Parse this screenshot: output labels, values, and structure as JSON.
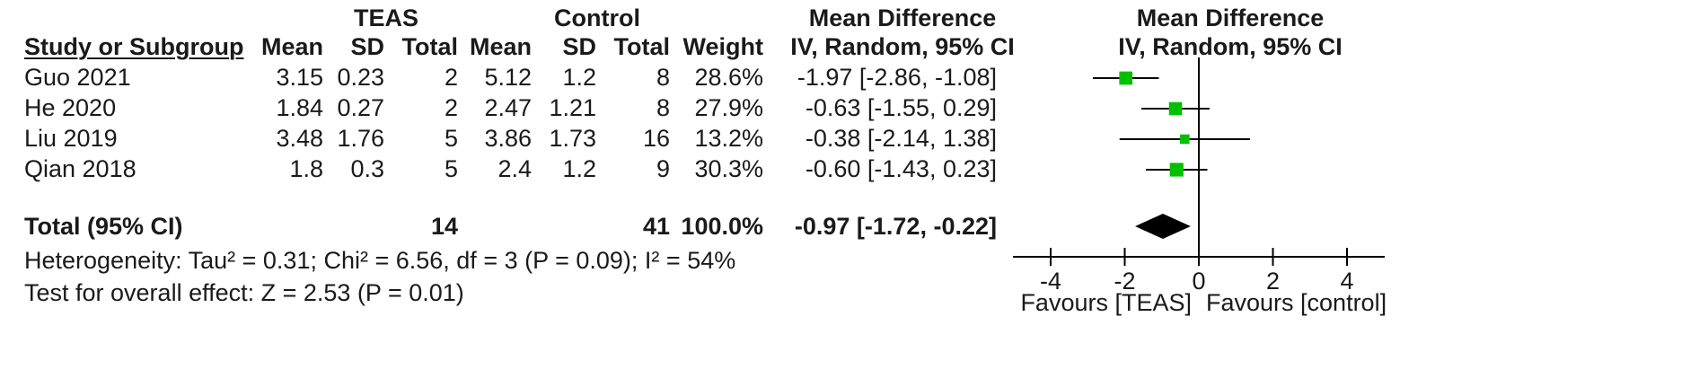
{
  "headers": {
    "group1": "TEAS",
    "group2": "Control",
    "md_left": "Mean Difference",
    "md_left_sub": "IV, Random, 95% CI",
    "md_right": "Mean Difference",
    "md_right_sub": "IV, Random, 95% CI",
    "study": "Study or Subgroup",
    "mean1": "Mean",
    "sd1": "SD",
    "total1": "Total",
    "mean2": "Mean",
    "sd2": "SD",
    "total2": "Total",
    "weight": "Weight"
  },
  "rows": [
    {
      "study": "Guo 2021",
      "mean1": "3.15",
      "sd1": "0.23",
      "total1": "2",
      "mean2": "5.12",
      "sd2": "1.2",
      "total2": "8",
      "weight": "28.6%",
      "ci": "-1.97 [-2.86, -1.08]"
    },
    {
      "study": "He 2020",
      "mean1": "1.84",
      "sd1": "0.27",
      "total1": "2",
      "mean2": "2.47",
      "sd2": "1.21",
      "total2": "8",
      "weight": "27.9%",
      "ci": "-0.63 [-1.55, 0.29]"
    },
    {
      "study": "Liu 2019",
      "mean1": "3.48",
      "sd1": "1.76",
      "total1": "5",
      "mean2": "3.86",
      "sd2": "1.73",
      "total2": "16",
      "weight": "13.2%",
      "ci": "-0.38 [-2.14, 1.38]"
    },
    {
      "study": "Qian 2018",
      "mean1": "1.8",
      "sd1": "0.3",
      "total1": "5",
      "mean2": "2.4",
      "sd2": "1.2",
      "total2": "9",
      "weight": "30.3%",
      "ci": "-0.60 [-1.43, 0.23]"
    }
  ],
  "total": {
    "label": "Total (95% CI)",
    "total1": "14",
    "total2": "41",
    "weight": "100.0%",
    "ci": "-0.97 [-1.72, -0.22]"
  },
  "heterogeneity": "Heterogeneity: Tau² = 0.31; Chi² = 6.56, df = 3 (P = 0.09); I² = 54%",
  "overall_effect": "Test for overall effect: Z = 2.53 (P = 0.01)",
  "axis": {
    "favours_left": "Favours [TEAS]",
    "favours_right": "Favours [control]"
  },
  "chart_data": {
    "type": "forest",
    "xlim": [
      -4,
      4
    ],
    "xticks": [
      -4,
      -2,
      0,
      2,
      4
    ],
    "xtick_labels": [
      "-4",
      "-2",
      "0",
      "2",
      "4"
    ],
    "reference_line": 0,
    "marker_color": "#00c000",
    "studies": [
      {
        "name": "Guo 2021",
        "md": -1.97,
        "lower": -2.86,
        "upper": -1.08,
        "weight": 28.6
      },
      {
        "name": "He 2020",
        "md": -0.63,
        "lower": -1.55,
        "upper": 0.29,
        "weight": 27.9
      },
      {
        "name": "Liu 2019",
        "md": -0.38,
        "lower": -2.14,
        "upper": 1.38,
        "weight": 13.2
      },
      {
        "name": "Qian 2018",
        "md": -0.6,
        "lower": -1.43,
        "upper": 0.23,
        "weight": 30.3
      }
    ],
    "pooled": {
      "md": -0.97,
      "lower": -1.72,
      "upper": -0.22
    }
  }
}
